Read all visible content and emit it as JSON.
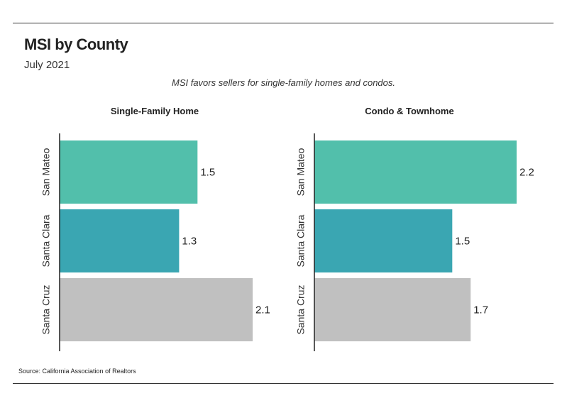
{
  "header": {
    "title": "MSI by County",
    "date": "July 2021",
    "subtitle": "MSI favors sellers for single-family homes and condos."
  },
  "colors": {
    "san_mateo": "#52bfab",
    "santa_clara": "#3aa6b2",
    "santa_cruz": "#c0c0c0",
    "axis": "#222222"
  },
  "chart_data": [
    {
      "type": "bar",
      "orientation": "horizontal",
      "title": "Single-Family Home",
      "categories": [
        "San Mateo",
        "Santa Clara",
        "Santa Cruz"
      ],
      "values": [
        1.5,
        1.3,
        2.1
      ],
      "data_labels": [
        "1.5",
        "1.3",
        "2.1"
      ],
      "xlim": [
        0,
        2.2
      ],
      "grid": false
    },
    {
      "type": "bar",
      "orientation": "horizontal",
      "title": "Condo & Townhome",
      "categories": [
        "San Mateo",
        "Santa Clara",
        "Santa Cruz"
      ],
      "values": [
        2.2,
        1.5,
        1.7
      ],
      "data_labels": [
        "2.2",
        "1.5",
        "1.7"
      ],
      "xlim": [
        0,
        2.2
      ],
      "grid": false
    }
  ],
  "footer": {
    "source": "Source:  California Association of Realtors"
  }
}
